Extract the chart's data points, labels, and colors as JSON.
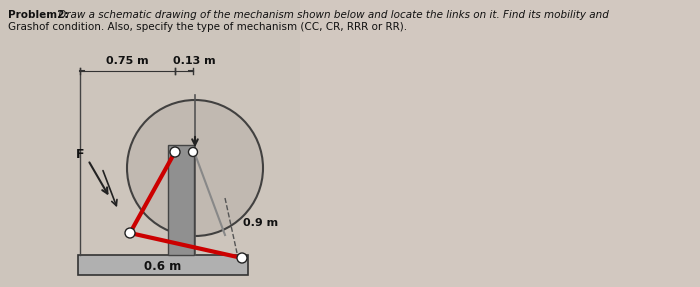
{
  "bg_color_left": "#cdc5bc",
  "bg_color_right": "#d8d0c8",
  "text_color": "#111111",
  "title_bold": "Problem2:",
  "title_rest1": " Draw a schematic drawing of the mechanism shown below and locate the links on it. Find its mobility and",
  "title_line2": "Grashof condition. Also, specify the type of mechanism (CC, CR, RRR or RR).",
  "title_fontsize": 7.5,
  "dim_075": "0.75 m",
  "dim_013": "0.13 m",
  "dim_09": "0.9 m",
  "dim_06": "0.6 m",
  "label_F": "F",
  "circle_facecolor": "#c0b8b0",
  "circle_edgecolor": "#333333",
  "slider_facecolor": "#909090",
  "slider_edgecolor": "#444444",
  "red_color": "#cc0000",
  "pin_facecolor": "#ffffff",
  "pin_edgecolor": "#222222",
  "ground_facecolor": "#b0b0b0",
  "ground_edgecolor": "#333333",
  "dim_line_color": "#333333",
  "arrow_color": "#222222",
  "frame_color": "#444444",
  "dashed_color": "#555555"
}
